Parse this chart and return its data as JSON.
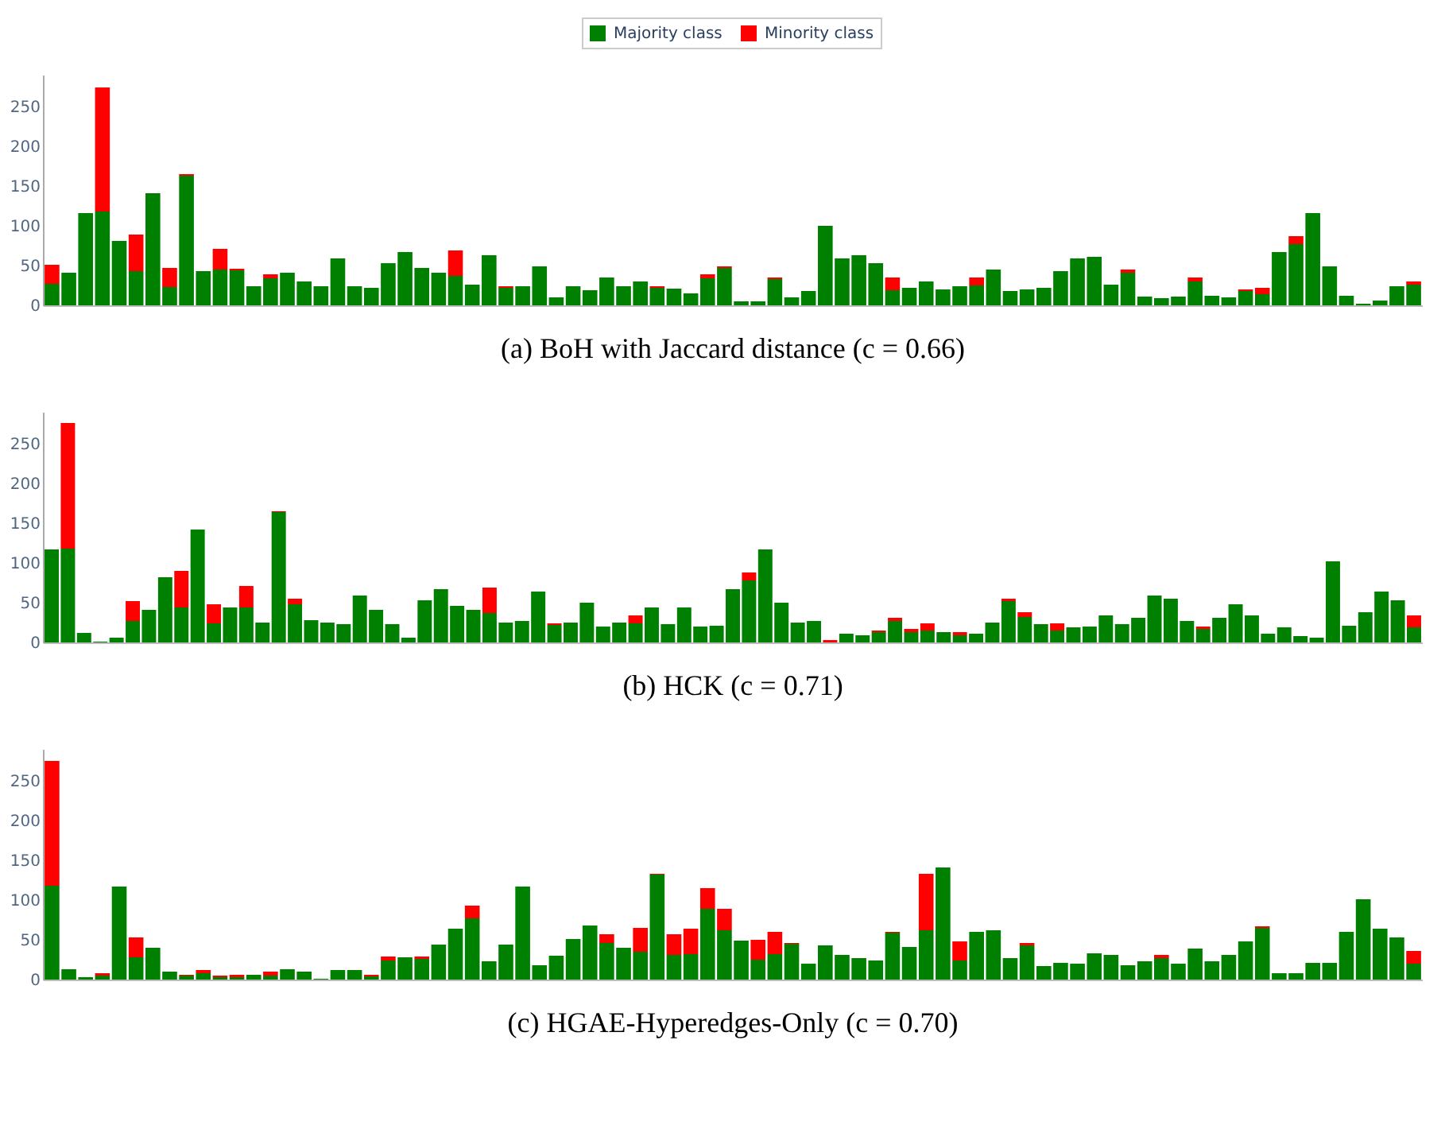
{
  "chart_data": [
    {
      "type": "bar",
      "stacked": true,
      "title": "(a) BoH with Jaccard distance (c = 0.66)",
      "legend": "top",
      "ylim": [
        0,
        290
      ],
      "yticks": [
        0,
        50,
        100,
        150,
        200,
        250
      ],
      "grid": false,
      "tick_labels": "y",
      "categories": [
        null,
        null,
        null,
        null,
        null,
        null,
        null,
        null,
        null,
        null,
        null,
        null,
        null,
        null,
        null,
        null,
        null,
        null,
        null,
        null,
        null,
        null,
        null,
        null,
        null,
        null,
        null,
        null,
        null,
        null,
        null,
        null,
        null,
        null,
        null,
        null,
        null,
        null,
        null,
        null,
        null,
        null,
        null,
        null,
        null,
        null,
        null,
        null,
        null,
        null,
        null,
        null,
        null,
        null,
        null,
        null,
        null,
        null,
        null,
        null,
        null,
        null,
        null,
        null,
        null,
        null,
        null,
        null,
        null,
        null,
        null,
        null,
        null,
        null,
        null,
        null,
        null,
        null,
        null,
        null,
        null,
        null
      ],
      "series": [
        {
          "name": "Majority class",
          "color": "#008000",
          "values": [
            27,
            41,
            116,
            118,
            81,
            43,
            141,
            23,
            163,
            43,
            45,
            44,
            24,
            34,
            41,
            30,
            24,
            59,
            24,
            22,
            53,
            67,
            47,
            41,
            37,
            26,
            63,
            22,
            24,
            49,
            10,
            24,
            19,
            35,
            24,
            30,
            22,
            21,
            15,
            34,
            47,
            5,
            5,
            33,
            10,
            18,
            100,
            59,
            63,
            53,
            19,
            22,
            30,
            20,
            24,
            25,
            45,
            18,
            20,
            22,
            43,
            59,
            61,
            26,
            41,
            11,
            9,
            11,
            30,
            12,
            10,
            18,
            14,
            67,
            77,
            116,
            49,
            12,
            2,
            6,
            24,
            26
          ]
        },
        {
          "name": "Minority class",
          "color": "#ff0000",
          "values": [
            24,
            0,
            0,
            156,
            0,
            46,
            0,
            24,
            2,
            0,
            26,
            2,
            0,
            5,
            0,
            0,
            0,
            0,
            0,
            0,
            0,
            0,
            0,
            0,
            32,
            0,
            0,
            2,
            0,
            0,
            0,
            0,
            0,
            0,
            0,
            0,
            2,
            0,
            0,
            5,
            2,
            0,
            0,
            2,
            0,
            0,
            0,
            0,
            0,
            0,
            16,
            0,
            0,
            0,
            0,
            10,
            0,
            0,
            0,
            0,
            0,
            0,
            0,
            0,
            4,
            0,
            0,
            0,
            5,
            0,
            0,
            2,
            8,
            0,
            10,
            0,
            0,
            0,
            0,
            0,
            0,
            4
          ]
        }
      ]
    },
    {
      "type": "bar",
      "stacked": true,
      "title": "(b) HCK (c = 0.71)",
      "ylim": [
        0,
        290
      ],
      "yticks": [
        0,
        50,
        100,
        150,
        200,
        250
      ],
      "grid": false,
      "tick_labels": "y",
      "categories": [
        null,
        null,
        null,
        null,
        null,
        null,
        null,
        null,
        null,
        null,
        null,
        null,
        null,
        null,
        null,
        null,
        null,
        null,
        null,
        null,
        null,
        null,
        null,
        null,
        null,
        null,
        null,
        null,
        null,
        null,
        null,
        null,
        null,
        null,
        null,
        null,
        null,
        null,
        null,
        null,
        null,
        null,
        null,
        null,
        null,
        null,
        null,
        null,
        null,
        null,
        null,
        null,
        null,
        null,
        null,
        null,
        null,
        null,
        null,
        null,
        null,
        null,
        null,
        null,
        null,
        null,
        null,
        null,
        null,
        null,
        null,
        null,
        null,
        null,
        null,
        null,
        null,
        null,
        null,
        null,
        null,
        null,
        null,
        null,
        null
      ],
      "series": [
        {
          "color": "#008000",
          "values": [
            117,
            118,
            12,
            1,
            6,
            27,
            41,
            82,
            44,
            142,
            24,
            44,
            44,
            25,
            164,
            48,
            28,
            25,
            23,
            59,
            41,
            23,
            6,
            53,
            67,
            46,
            41,
            37,
            25,
            27,
            64,
            22,
            25,
            50,
            20,
            25,
            24,
            44,
            23,
            44,
            20,
            21,
            67,
            78,
            117,
            50,
            25,
            27,
            0,
            11,
            9,
            13,
            27,
            13,
            15,
            13,
            9,
            11,
            25,
            52,
            32,
            23,
            15,
            19,
            20,
            34,
            23,
            31,
            59,
            55,
            27,
            17,
            31,
            48,
            34,
            11,
            19,
            8,
            6,
            102,
            21,
            38,
            64,
            53,
            19
          ]
        },
        {
          "color": "#ff0000",
          "values": [
            0,
            158,
            0,
            0,
            0,
            25,
            0,
            0,
            46,
            0,
            24,
            0,
            27,
            0,
            1,
            7,
            0,
            0,
            0,
            0,
            0,
            0,
            0,
            0,
            0,
            0,
            0,
            32,
            0,
            0,
            0,
            2,
            0,
            0,
            0,
            0,
            10,
            0,
            0,
            0,
            0,
            0,
            0,
            10,
            0,
            0,
            0,
            0,
            3,
            0,
            0,
            2,
            4,
            4,
            9,
            0,
            4,
            0,
            0,
            3,
            6,
            0,
            9,
            0,
            0,
            0,
            0,
            0,
            0,
            0,
            0,
            3,
            0,
            0,
            0,
            0,
            0,
            0,
            0,
            0,
            0,
            0,
            0,
            0,
            15
          ]
        }
      ]
    },
    {
      "type": "bar",
      "stacked": true,
      "title": "(c) HGAE-Hyperedges-Only (c = 0.70)",
      "ylim": [
        0,
        290
      ],
      "yticks": [
        0,
        50,
        100,
        150,
        200,
        250
      ],
      "grid": false,
      "tick_labels": "y",
      "categories": [
        null,
        null,
        null,
        null,
        null,
        null,
        null,
        null,
        null,
        null,
        null,
        null,
        null,
        null,
        null,
        null,
        null,
        null,
        null,
        null,
        null,
        null,
        null,
        null,
        null,
        null,
        null,
        null,
        null,
        null,
        null,
        null,
        null,
        null,
        null,
        null,
        null,
        null,
        null,
        null,
        null,
        null,
        null,
        null,
        null,
        null,
        null,
        null,
        null,
        null,
        null,
        null,
        null,
        null,
        null,
        null,
        null,
        null,
        null,
        null,
        null,
        null,
        null,
        null,
        null,
        null,
        null,
        null,
        null,
        null,
        null,
        null,
        null,
        null,
        null,
        null,
        null,
        null,
        null,
        null,
        null,
        null
      ],
      "series": [
        {
          "color": "#008000",
          "values": [
            118,
            13,
            3,
            5,
            117,
            28,
            40,
            10,
            5,
            8,
            3,
            3,
            6,
            5,
            13,
            10,
            1,
            12,
            12,
            4,
            24,
            28,
            26,
            44,
            64,
            77,
            23,
            44,
            117,
            18,
            30,
            51,
            68,
            46,
            40,
            35,
            132,
            31,
            32,
            89,
            62,
            49,
            25,
            32,
            45,
            20,
            43,
            31,
            27,
            24,
            59,
            41,
            62,
            141,
            24,
            60,
            62,
            27,
            43,
            17,
            21,
            20,
            33,
            31,
            18,
            23,
            27,
            20,
            39,
            23,
            31,
            48,
            65,
            8,
            8,
            21,
            21,
            60,
            101,
            64,
            53,
            20
          ]
        },
        {
          "color": "#ff0000",
          "values": [
            157,
            0,
            0,
            3,
            0,
            25,
            0,
            0,
            1,
            4,
            2,
            3,
            0,
            5,
            0,
            0,
            0,
            0,
            0,
            2,
            5,
            0,
            3,
            0,
            0,
            16,
            0,
            0,
            0,
            0,
            0,
            0,
            0,
            11,
            0,
            30,
            1,
            26,
            32,
            26,
            27,
            0,
            25,
            28,
            1,
            0,
            0,
            0,
            0,
            0,
            1,
            0,
            71,
            0,
            24,
            0,
            0,
            0,
            3,
            0,
            0,
            0,
            0,
            0,
            0,
            0,
            4,
            0,
            0,
            0,
            0,
            0,
            2,
            0,
            0,
            0,
            0,
            0,
            0,
            0,
            0,
            16
          ]
        }
      ]
    }
  ]
}
